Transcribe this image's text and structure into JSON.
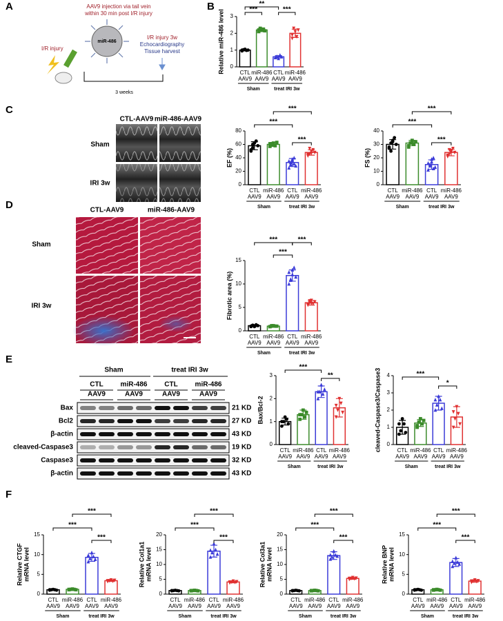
{
  "panels": [
    "A",
    "B",
    "C",
    "D",
    "E",
    "F"
  ],
  "schematic": {
    "injection_line1": "AAV9 injection via tail vein",
    "injection_line2": "within 30 min post I/R injury",
    "virus": "miR-486",
    "ir_injury": "I/R injury",
    "ir_3w": "I/R injury 3w",
    "echo": "Echocardiography",
    "harvest": "Tissue harvest",
    "duration": "3 weeks"
  },
  "echo_images": {
    "columns": [
      "CTL-AAV9",
      "miR-486-AAV9"
    ],
    "rows": [
      "Sham",
      "IRI 3w"
    ]
  },
  "histology_images": {
    "columns": [
      "CTL-AAV9",
      "miR-486-AAV9"
    ],
    "rows": [
      "Sham",
      "IRI 3w"
    ]
  },
  "blot": {
    "groups": [
      "Sham",
      "treat IRI 3w"
    ],
    "lanes": [
      [
        "CTL",
        "AAV9"
      ],
      [
        "miR-486",
        "AAV9"
      ],
      [
        "CTL",
        "AAV9"
      ],
      [
        "miR-486",
        "AAV9"
      ]
    ],
    "rows": [
      "Bax",
      "Bcl2",
      "β-actin",
      "cleaved-Caspase3",
      "Caspase3",
      "β-actin"
    ],
    "sizes": [
      "21 KD",
      "27 KD",
      "43 KD",
      "19 KD",
      "32 KD",
      "43 KD"
    ]
  },
  "chart_data": [
    {
      "type": "bar",
      "ylabel": [
        "Relative miR-486 level"
      ],
      "categories": [
        [
          "CTL",
          "AAV9"
        ],
        [
          "miR-486",
          "AAV9"
        ],
        [
          "CTL",
          "AAV9"
        ],
        [
          "miR-486",
          "AAV9"
        ]
      ],
      "groups": [
        "Sham",
        "treat IRI 3w"
      ],
      "colors": [
        "#000000",
        "#3b8b2a",
        "#3a3ad8",
        "#e03030"
      ],
      "values": [
        1.0,
        2.2,
        0.6,
        2.0
      ],
      "errors": [
        0.05,
        0.1,
        0.07,
        0.25
      ],
      "points": [
        [
          0.95,
          1.02,
          1.05,
          0.98,
          1.0,
          1.0
        ],
        [
          2.1,
          2.3,
          2.2,
          2.25,
          2.15,
          2.2
        ],
        [
          0.55,
          0.62,
          0.5,
          0.7,
          0.6,
          0.58
        ],
        [
          1.7,
          2.3,
          2.1,
          1.8,
          2.2,
          1.9
        ]
      ],
      "ylim": [
        0,
        3
      ],
      "yticks": [
        0,
        1,
        2,
        3
      ],
      "significance": [
        "***",
        "**",
        "***"
      ]
    },
    {
      "type": "bar",
      "ylabel": [
        "EF (%)"
      ],
      "categories": [
        [
          "CTL",
          "AAV9"
        ],
        [
          "miR-486",
          "AAV9"
        ],
        [
          "CTL",
          "AAV9"
        ],
        [
          "miR-486",
          "AAV9"
        ]
      ],
      "groups": [
        "Sham",
        "treat IRI 3w"
      ],
      "colors": [
        "#000000",
        "#3b8b2a",
        "#3a3ad8",
        "#e03030"
      ],
      "values": [
        58,
        60,
        33,
        48
      ],
      "errors": [
        6,
        3,
        6,
        4
      ],
      "points": [
        [
          52,
          55,
          62,
          65,
          58,
          50,
          60,
          62
        ],
        [
          57,
          60,
          62,
          58,
          63,
          61,
          59,
          60
        ],
        [
          25,
          30,
          38,
          40,
          28,
          35,
          33,
          36,
          31
        ],
        [
          43,
          46,
          50,
          52,
          48,
          45,
          54,
          47
        ]
      ],
      "ylim": [
        0,
        80
      ],
      "yticks": [
        0,
        20,
        40,
        60,
        80
      ],
      "significance": [
        "***",
        "***",
        "***"
      ]
    },
    {
      "type": "bar",
      "ylabel": [
        "FS (%)"
      ],
      "categories": [
        [
          "CTL",
          "AAV9"
        ],
        [
          "miR-486",
          "AAV9"
        ],
        [
          "CTL",
          "AAV9"
        ],
        [
          "miR-486",
          "AAV9"
        ]
      ],
      "groups": [
        "Sham",
        "treat IRI 3w"
      ],
      "colors": [
        "#000000",
        "#3b8b2a",
        "#3a3ad8",
        "#e03030"
      ],
      "values": [
        30,
        31,
        15,
        24
      ],
      "errors": [
        3.5,
        2,
        3.5,
        2.5
      ],
      "points": [
        [
          27,
          25,
          32,
          35,
          30,
          28,
          31,
          33
        ],
        [
          29,
          31,
          33,
          30,
          32,
          28,
          31,
          32
        ],
        [
          11,
          14,
          19,
          20,
          13,
          16,
          15,
          17,
          12
        ],
        [
          21,
          23,
          25,
          27,
          24,
          22,
          26,
          24
        ]
      ],
      "ylim": [
        0,
        40
      ],
      "yticks": [
        0,
        10,
        20,
        30,
        40
      ],
      "significance": [
        "***",
        "***",
        "***"
      ]
    },
    {
      "type": "bar",
      "ylabel": [
        "Fibrotic area (%)"
      ],
      "categories": [
        [
          "CTL",
          "AAV9"
        ],
        [
          "miR-486",
          "AAV9"
        ],
        [
          "CTL",
          "AAV9"
        ],
        [
          "miR-486",
          "AAV9"
        ]
      ],
      "groups": [
        "Sham",
        "treat IRI 3w"
      ],
      "colors": [
        "#000000",
        "#3b8b2a",
        "#3a3ad8",
        "#e03030"
      ],
      "values": [
        1.1,
        1.0,
        11.8,
        6.0
      ],
      "errors": [
        0.2,
        0.1,
        1.2,
        0.5
      ],
      "points": [
        [
          0.9,
          1.2,
          1.0,
          1.3,
          1.1,
          1.0,
          1.2,
          0.9
        ],
        [
          0.9,
          1.0,
          1.1,
          1.0,
          1.0,
          0.9,
          1.1
        ],
        [
          10,
          11,
          12,
          13.5,
          11.5,
          12.5,
          10.8,
          13
        ],
        [
          5.5,
          6,
          6.5,
          5.8,
          6.2,
          5.6,
          6.4,
          5.9
        ]
      ],
      "ylim": [
        0,
        15
      ],
      "yticks": [
        0,
        5,
        10,
        15
      ],
      "significance": [
        "***",
        "***",
        "***"
      ]
    },
    {
      "type": "bar",
      "ylabel": [
        "Bax/Bcl-2"
      ],
      "categories": [
        [
          "CTL",
          "AAV9"
        ],
        [
          "miR-486",
          "AAV9"
        ],
        [
          "CTL",
          "AAV9"
        ],
        [
          "miR-486",
          "AAV9"
        ]
      ],
      "groups": [
        "Sham",
        "treat IRI 3w"
      ],
      "colors": [
        "#000000",
        "#3b8b2a",
        "#3a3ad8",
        "#e03030"
      ],
      "values": [
        1.0,
        1.3,
        2.3,
        1.6
      ],
      "errors": [
        0.15,
        0.2,
        0.25,
        0.4
      ],
      "points": [
        [
          0.8,
          1.0,
          1.2,
          1.1,
          0.9,
          1.0
        ],
        [
          1.1,
          1.3,
          1.5,
          1.2,
          1.4,
          1.3
        ],
        [
          2.0,
          2.3,
          2.6,
          2.2,
          2.4,
          2.3
        ],
        [
          1.2,
          1.5,
          2.0,
          1.8,
          1.4,
          1.7
        ]
      ],
      "ylim": [
        0,
        3
      ],
      "yticks": [
        0,
        1,
        2,
        3
      ],
      "significance": [
        "***",
        "**"
      ]
    },
    {
      "type": "bar",
      "ylabel": [
        "cleaved-Caspase3/Caspase3"
      ],
      "categories": [
        [
          "CTL",
          "AAV9"
        ],
        [
          "miR-486",
          "AAV9"
        ],
        [
          "CTL",
          "AAV9"
        ],
        [
          "miR-486",
          "AAV9"
        ]
      ],
      "groups": [
        "Sham",
        "treat IRI 3w"
      ],
      "colors": [
        "#000000",
        "#3b8b2a",
        "#3a3ad8",
        "#e03030"
      ],
      "values": [
        1.0,
        1.25,
        2.4,
        1.6
      ],
      "errors": [
        0.4,
        0.2,
        0.4,
        0.6
      ],
      "points": [
        [
          0.6,
          0.8,
          1.5,
          1.2,
          0.7,
          1.2
        ],
        [
          1.0,
          1.3,
          1.5,
          1.2,
          1.4,
          1.1
        ],
        [
          2.0,
          2.3,
          2.8,
          2.6,
          2.1,
          2.6
        ],
        [
          1.0,
          1.5,
          2.2,
          1.8,
          1.2,
          1.9
        ]
      ],
      "ylim": [
        0,
        4
      ],
      "yticks": [
        0,
        1,
        2,
        3,
        4
      ],
      "significance": [
        "***",
        "*"
      ]
    },
    {
      "type": "bar",
      "ylabel": [
        "Relative CTGF",
        "mRNA level"
      ],
      "categories": [
        [
          "CTL",
          "AAV9"
        ],
        [
          "miR-486",
          "AAV9"
        ],
        [
          "CTL",
          "AAV9"
        ],
        [
          "miR-486",
          "AAV9"
        ]
      ],
      "groups": [
        "Sham",
        "treat IRI 3w"
      ],
      "colors": [
        "#000000",
        "#3b8b2a",
        "#3a3ad8",
        "#e03030"
      ],
      "values": [
        1.1,
        1.2,
        9.3,
        3.4
      ],
      "errors": [
        0.1,
        0.1,
        1.0,
        0.2
      ],
      "points": [
        [
          1.0,
          1.1,
          1.2,
          1.1,
          1.0,
          1.1
        ],
        [
          1.1,
          1.2,
          1.3,
          1.2,
          1.1,
          1.2
        ],
        [
          8.2,
          9,
          10.5,
          9.5,
          8.8,
          9.8
        ],
        [
          3.2,
          3.4,
          3.6,
          3.3,
          3.5,
          3.4
        ]
      ],
      "ylim": [
        0,
        15
      ],
      "yticks": [
        0,
        5,
        10,
        15
      ],
      "significance": [
        "***",
        "***",
        "***"
      ]
    },
    {
      "type": "bar",
      "ylabel": [
        "Relative Col1a1",
        "mRNA level"
      ],
      "categories": [
        [
          "CTL",
          "AAV9"
        ],
        [
          "miR-486",
          "AAV9"
        ],
        [
          "CTL",
          "AAV9"
        ],
        [
          "miR-486",
          "AAV9"
        ]
      ],
      "groups": [
        "Sham",
        "treat IRI 3w"
      ],
      "colors": [
        "#000000",
        "#3b8b2a",
        "#3a3ad8",
        "#e03030"
      ],
      "values": [
        1.2,
        1.2,
        14.5,
        4.1
      ],
      "errors": [
        0.1,
        0.1,
        2.0,
        0.3
      ],
      "points": [
        [
          1.1,
          1.2,
          1.3,
          1.2,
          1.1,
          1.2
        ],
        [
          1.1,
          1.2,
          1.3,
          1.2,
          1.1,
          1.2
        ],
        [
          12.5,
          14,
          17,
          15,
          13.5,
          14.8
        ],
        [
          3.8,
          4.1,
          4.4,
          4.0,
          4.2,
          4.1
        ]
      ],
      "ylim": [
        0,
        20
      ],
      "yticks": [
        0,
        5,
        10,
        15,
        20
      ],
      "significance": [
        "***",
        "***",
        "***"
      ]
    },
    {
      "type": "bar",
      "ylabel": [
        "Relative Col3a1",
        "mRNA level"
      ],
      "categories": [
        [
          "CTL",
          "AAV9"
        ],
        [
          "miR-486",
          "AAV9"
        ],
        [
          "CTL",
          "AAV9"
        ],
        [
          "miR-486",
          "AAV9"
        ]
      ],
      "groups": [
        "Sham",
        "treat IRI 3w"
      ],
      "colors": [
        "#000000",
        "#3b8b2a",
        "#3a3ad8",
        "#e03030"
      ],
      "values": [
        1.2,
        1.2,
        13,
        5.3
      ],
      "errors": [
        0.1,
        0.1,
        1.3,
        0.3
      ],
      "points": [
        [
          1.1,
          1.2,
          1.3,
          1.2,
          1.1,
          1.2
        ],
        [
          1.1,
          1.2,
          1.3,
          1.2,
          1.1,
          1.2
        ],
        [
          11.8,
          12.5,
          14.5,
          13.2,
          12.8,
          13.2
        ],
        [
          5,
          5.3,
          5.6,
          5.2,
          5.4,
          5.3
        ]
      ],
      "ylim": [
        0,
        20
      ],
      "yticks": [
        0,
        5,
        10,
        15,
        20
      ],
      "significance": [
        "***",
        "***",
        "***"
      ]
    },
    {
      "type": "bar",
      "ylabel": [
        "Relative BNP",
        "mRNA level"
      ],
      "categories": [
        [
          "CTL",
          "AAV9"
        ],
        [
          "miR-486",
          "AAV9"
        ],
        [
          "CTL",
          "AAV9"
        ],
        [
          "miR-486",
          "AAV9"
        ]
      ],
      "groups": [
        "Sham",
        "treat IRI 3w"
      ],
      "colors": [
        "#000000",
        "#3b8b2a",
        "#3a3ad8",
        "#e03030"
      ],
      "values": [
        1.1,
        1.1,
        8,
        3.3
      ],
      "errors": [
        0.1,
        0.1,
        1.0,
        0.3
      ],
      "points": [
        [
          1.0,
          1.1,
          1.2,
          1.1,
          1.0,
          1.1
        ],
        [
          1.0,
          1.1,
          1.2,
          1.1,
          1.0,
          1.1
        ],
        [
          7,
          7.8,
          9.2,
          8.1,
          7.6,
          8.3
        ],
        [
          3,
          3.3,
          3.6,
          3.2,
          3.4,
          3.3
        ]
      ],
      "ylim": [
        0,
        15
      ],
      "yticks": [
        0,
        5,
        10,
        15
      ],
      "significance": [
        "***",
        "***",
        "***"
      ]
    }
  ]
}
